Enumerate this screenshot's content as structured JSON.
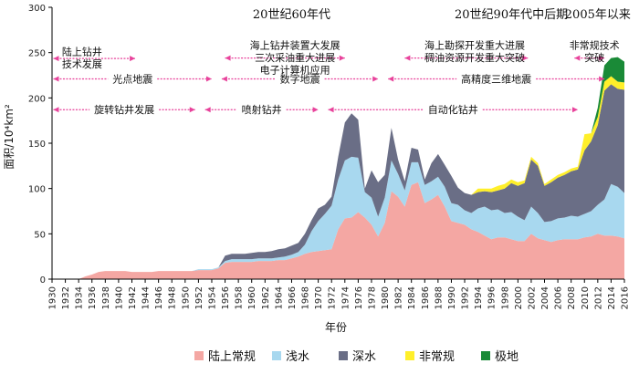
{
  "chart_data": {
    "type": "area",
    "stacked": true,
    "xlabel": "年份",
    "ylabel": "面积/10⁴km²",
    "ylim": [
      0,
      300
    ],
    "xlim": [
      1930,
      2016
    ],
    "yticks": [
      0,
      50,
      100,
      150,
      200,
      250,
      300
    ],
    "xticks": [
      "1930",
      "1932",
      "1934",
      "1936",
      "1938",
      "1940",
      "1942",
      "1944",
      "1946",
      "1948",
      "1950",
      "1952",
      "1954",
      "1956",
      "1958",
      "1960",
      "1962",
      "1964",
      "1966",
      "1968",
      "1970",
      "1972",
      "1974",
      "1976",
      "1978",
      "1980",
      "1982",
      "1984",
      "1986",
      "1988",
      "1990",
      "1992",
      "1994",
      "1996",
      "1998",
      "2000",
      "2002",
      "2004",
      "2006",
      "2008",
      "2010",
      "2012",
      "2014",
      "2016"
    ],
    "x": [
      1930,
      1931,
      1932,
      1933,
      1934,
      1935,
      1936,
      1937,
      1938,
      1939,
      1940,
      1941,
      1942,
      1943,
      1944,
      1945,
      1946,
      1947,
      1948,
      1949,
      1950,
      1951,
      1952,
      1953,
      1954,
      1955,
      1956,
      1957,
      1958,
      1959,
      1960,
      1961,
      1962,
      1963,
      1964,
      1965,
      1966,
      1967,
      1968,
      1969,
      1970,
      1971,
      1972,
      1973,
      1974,
      1975,
      1976,
      1977,
      1978,
      1979,
      1980,
      1981,
      1982,
      1983,
      1984,
      1985,
      1986,
      1987,
      1988,
      1989,
      1990,
      1991,
      1992,
      1993,
      1994,
      1995,
      1996,
      1997,
      1998,
      1999,
      2000,
      2001,
      2002,
      2003,
      2004,
      2005,
      2006,
      2007,
      2008,
      2009,
      2010,
      2011,
      2012,
      2013,
      2014,
      2015,
      2016
    ],
    "series": [
      {
        "name": "陆上常规",
        "color": "#f4a7a3",
        "values": [
          0,
          0,
          0,
          0,
          0,
          3,
          5,
          8,
          9,
          9,
          9,
          9,
          8,
          8,
          8,
          8,
          9,
          9,
          9,
          9,
          9,
          9,
          10,
          10,
          10,
          12,
          18,
          19,
          19,
          19,
          19,
          20,
          20,
          20,
          21,
          21,
          23,
          25,
          28,
          30,
          31,
          32,
          33,
          55,
          67,
          68,
          74,
          68,
          60,
          47,
          62,
          97,
          91,
          80,
          104,
          107,
          84,
          88,
          93,
          80,
          64,
          62,
          60,
          55,
          52,
          48,
          44,
          46,
          46,
          44,
          42,
          42,
          50,
          45,
          43,
          41,
          43,
          44,
          44,
          44,
          46,
          47,
          50,
          48,
          48,
          47,
          45
        ]
      },
      {
        "name": "浅水",
        "color": "#a8d8ef",
        "values": [
          0,
          0,
          0,
          0,
          0,
          0,
          0,
          0,
          0,
          0,
          0,
          0,
          0,
          0,
          0,
          0,
          0,
          0,
          0,
          0,
          0,
          0,
          1,
          1,
          1,
          1,
          2,
          3,
          3,
          3,
          3,
          3,
          3,
          3,
          3,
          4,
          4,
          5,
          10,
          23,
          33,
          40,
          48,
          55,
          64,
          67,
          60,
          28,
          30,
          22,
          28,
          34,
          25,
          18,
          25,
          22,
          20,
          20,
          20,
          22,
          20,
          20,
          16,
          18,
          26,
          32,
          32,
          31,
          27,
          30,
          27,
          23,
          30,
          28,
          20,
          23,
          24,
          24,
          26,
          25,
          26,
          28,
          32,
          40,
          57,
          55,
          50
        ]
      },
      {
        "name": "深水",
        "color": "#6a6e86",
        "values": [
          0,
          0,
          0,
          0,
          0,
          0,
          0,
          0,
          0,
          0,
          0,
          0,
          0,
          0,
          0,
          0,
          0,
          0,
          0,
          0,
          0,
          0,
          0,
          0,
          0,
          0,
          6,
          6,
          6,
          6,
          7,
          7,
          7,
          8,
          9,
          9,
          10,
          10,
          12,
          12,
          14,
          10,
          10,
          25,
          42,
          48,
          42,
          4,
          30,
          38,
          25,
          36,
          16,
          10,
          16,
          14,
          6,
          20,
          25,
          24,
          30,
          19,
          19,
          20,
          18,
          17,
          20,
          21,
          27,
          32,
          34,
          41,
          52,
          52,
          40,
          43,
          45,
          47,
          49,
          52,
          70,
          77,
          88,
          120,
          110,
          108,
          114
        ]
      },
      {
        "name": "非常规",
        "color": "#ffef2a",
        "values": [
          0,
          0,
          0,
          0,
          0,
          0,
          0,
          0,
          0,
          0,
          0,
          0,
          0,
          0,
          0,
          0,
          0,
          0,
          0,
          0,
          0,
          0,
          0,
          0,
          0,
          0,
          0,
          0,
          0,
          0,
          0,
          0,
          0,
          0,
          0,
          0,
          0,
          0,
          0,
          0,
          0,
          0,
          0,
          0,
          0,
          0,
          0,
          0,
          0,
          0,
          0,
          0,
          0,
          0,
          0,
          0,
          0,
          0,
          0,
          0,
          0,
          0,
          0,
          0,
          4,
          3,
          4,
          5,
          5,
          4,
          4,
          3,
          3,
          3,
          2,
          3,
          3,
          3,
          3,
          3,
          18,
          9,
          9,
          10,
          9,
          8,
          8
        ]
      },
      {
        "name": "极地",
        "color": "#1a8a37",
        "values": [
          0,
          0,
          0,
          0,
          0,
          0,
          0,
          0,
          0,
          0,
          0,
          0,
          0,
          0,
          0,
          0,
          0,
          0,
          0,
          0,
          0,
          0,
          0,
          0,
          0,
          0,
          0,
          0,
          0,
          0,
          0,
          0,
          0,
          0,
          0,
          0,
          0,
          0,
          0,
          0,
          0,
          0,
          0,
          0,
          0,
          0,
          0,
          0,
          0,
          0,
          0,
          0,
          0,
          0,
          0,
          0,
          0,
          0,
          0,
          0,
          0,
          0,
          0,
          0,
          0,
          0,
          0,
          0,
          0,
          0,
          0,
          0,
          0,
          0,
          0,
          0,
          0,
          0,
          0,
          0,
          0,
          0,
          10,
          18,
          20,
          27,
          23
        ]
      }
    ],
    "annotations": {
      "eras": [
        {
          "text": "20世纪60年代",
          "at": 1966
        },
        {
          "text": "20世纪90年代中后期",
          "at": 1999
        },
        {
          "text": "2005年以来",
          "at": 2012
        }
      ],
      "notes": [
        {
          "lines": [
            "陆上钻井",
            "技术发展"
          ],
          "at": 1931.5,
          "y": 247,
          "anchor": "start"
        },
        {
          "lines": [
            "海上钻井装置大发展",
            "三次采油重大进展",
            "电子计算机应用"
          ],
          "at": 1966.5,
          "y": 254,
          "anchor": "middle"
        },
        {
          "lines": [
            "海上勘探开发重大进展",
            "稠油资源开发重大突破"
          ],
          "at": 1993.5,
          "y": 254,
          "anchor": "middle"
        },
        {
          "lines": [
            "非常规技术",
            "突破"
          ],
          "at": 2011.5,
          "y": 254,
          "anchor": "middle"
        }
      ],
      "arrows": [
        {
          "label": "",
          "from": 1930.2,
          "to": 1942.5,
          "y": 243.5
        },
        {
          "label": "",
          "from": 1956,
          "to": 1974,
          "y": 244
        },
        {
          "label": "",
          "from": 1983,
          "to": 2001.5,
          "y": 244
        },
        {
          "label": "",
          "from": 2008.5,
          "to": 2013,
          "y": 244
        },
        {
          "label": "光点地震",
          "from": 1930.2,
          "to": 1954,
          "y": 221
        },
        {
          "label": "数字地震",
          "from": 1955.5,
          "to": 1979,
          "y": 221
        },
        {
          "label": "高精度三维地震",
          "from": 1980.5,
          "to": 2013,
          "y": 221
        },
        {
          "label": "旋转钻井发展",
          "from": 1930.2,
          "to": 1951.5,
          "y": 187
        },
        {
          "label": "喷射钻井",
          "from": 1953,
          "to": 1970,
          "y": 187
        },
        {
          "label": "自动化钻井",
          "from": 1971.5,
          "to": 2009,
          "y": 187
        }
      ]
    }
  }
}
